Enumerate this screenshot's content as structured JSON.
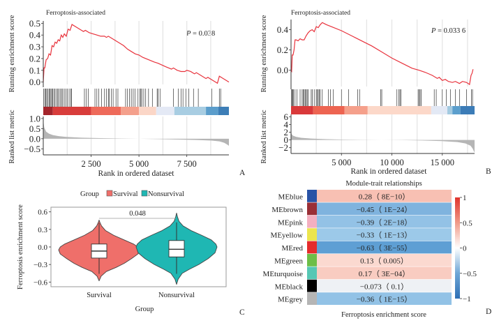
{
  "chart_data": [
    {
      "id": "A",
      "type": "line",
      "panel_label": "A",
      "title": "Ferroptosis-associated",
      "annotation": "P = 0.038",
      "annotation_italic": "P",
      "annotation_rest": " = 0.038",
      "ylabel_top": "Running enrichment score",
      "ylabel_bottom": "Ranked list metric",
      "xlabel": "Rank in ordered dataset",
      "xlim": [
        0,
        9700
      ],
      "es_ylim": [
        -0.02,
        0.52
      ],
      "es_yticks": [
        0.0,
        0.1,
        0.2,
        0.3,
        0.4,
        0.5
      ],
      "es_ytick_labels": [
        "0.0",
        "0.1",
        "0.2",
        "0.3",
        "0.4",
        "0.5"
      ],
      "metric_ylim": [
        -0.8,
        1.1
      ],
      "metric_yticks": [
        1.0,
        0.5,
        0.0,
        -0.5
      ],
      "metric_ytick_labels": [
        "1.0",
        "0.5",
        "0.0",
        "−0.5"
      ],
      "xticks": [
        2500,
        5000,
        7500
      ],
      "xtick_labels": [
        "2 500",
        "5 000",
        "7 500"
      ],
      "grid_x": [
        1250,
        2500,
        3750,
        5000,
        6250,
        7500,
        8750
      ],
      "running_es": {
        "x": [
          0,
          40,
          80,
          150,
          230,
          300,
          380,
          460,
          540,
          620,
          700,
          780,
          860,
          940,
          1020,
          1100,
          1200,
          1300,
          1400,
          1500,
          1800,
          2000,
          2100,
          2200,
          2400,
          2600,
          2800,
          3000,
          3200,
          3300,
          3400,
          3600,
          3800,
          4000,
          4200,
          4400,
          4600,
          4800,
          5000,
          5200,
          5500,
          5800,
          6000,
          6400,
          6700,
          6800,
          7000,
          7200,
          7400,
          7500,
          7700,
          7900,
          8000,
          8200,
          8500,
          8600,
          8800,
          9000,
          9100,
          9200,
          9300,
          9500,
          9700
        ],
        "y": [
          0.0,
          0.12,
          0.12,
          0.19,
          0.2,
          0.24,
          0.23,
          0.31,
          0.3,
          0.34,
          0.33,
          0.36,
          0.35,
          0.4,
          0.38,
          0.41,
          0.39,
          0.45,
          0.44,
          0.49,
          0.46,
          0.44,
          0.43,
          0.44,
          0.42,
          0.41,
          0.4,
          0.39,
          0.39,
          0.38,
          0.39,
          0.37,
          0.35,
          0.33,
          0.31,
          0.28,
          0.26,
          0.24,
          0.23,
          0.21,
          0.19,
          0.17,
          0.16,
          0.13,
          0.11,
          0.12,
          0.1,
          0.09,
          0.09,
          0.1,
          0.09,
          0.07,
          0.08,
          0.06,
          0.03,
          0.04,
          0.02,
          0.0,
          -0.01,
          0.05,
          0.04,
          0.02,
          0.0
        ]
      },
      "hits": [
        20,
        80,
        130,
        180,
        240,
        300,
        350,
        400,
        450,
        500,
        560,
        620,
        700,
        760,
        820,
        900,
        960,
        1020,
        1100,
        1180,
        1260,
        1350,
        1430,
        1480,
        2150,
        2250,
        2350,
        2700,
        2800,
        2900,
        3050,
        3200,
        3300,
        3400,
        3450,
        3550,
        3650,
        3800,
        3900,
        4300,
        4400,
        4500,
        4600,
        4700,
        4800,
        4950,
        5050,
        5100,
        5150,
        5250,
        5350,
        5500,
        5700,
        5950,
        6000,
        6100,
        6800,
        7050,
        7200,
        7300,
        7450,
        7600,
        7850,
        8100,
        8800,
        9200,
        9270
      ],
      "heat_segments": [
        {
          "from": 0,
          "to": 500,
          "color": "#a4252b"
        },
        {
          "from": 500,
          "to": 2500,
          "color": "#d83d3b"
        },
        {
          "from": 2500,
          "to": 4050,
          "color": "#ee6a5a"
        },
        {
          "from": 4050,
          "to": 5000,
          "color": "#f4a08c"
        },
        {
          "from": 5000,
          "to": 5900,
          "color": "#fbd6c7"
        },
        {
          "from": 5900,
          "to": 6850,
          "color": "#e4e9f5"
        },
        {
          "from": 6850,
          "to": 8500,
          "color": "#a8cde2"
        },
        {
          "from": 8500,
          "to": 9150,
          "color": "#5b9dcb"
        },
        {
          "from": 9150,
          "to": 9700,
          "color": "#3d7eb7"
        }
      ],
      "ranked_metric": {
        "x": [
          0,
          50,
          150,
          300,
          500,
          800,
          1200,
          2000,
          3000,
          4000,
          5000,
          6000,
          7000,
          8000,
          8800,
          9200,
          9450,
          9600,
          9700
        ],
        "y": [
          0.9,
          0.55,
          0.35,
          0.25,
          0.18,
          0.13,
          0.09,
          0.05,
          0.03,
          0.01,
          0.0,
          -0.02,
          -0.04,
          -0.06,
          -0.09,
          -0.13,
          -0.2,
          -0.28,
          -0.35
        ]
      },
      "line_color": "#e8323c",
      "metric_fill": "#b5b5b5"
    },
    {
      "id": "B",
      "type": "line",
      "panel_label": "B",
      "title": "Ferroptosis-associated",
      "annotation_italic": "P",
      "annotation_rest": " = 0.033 6",
      "ylabel_top": "Running enrichment score",
      "ylabel_bottom": "Ranked list metric",
      "xlabel": "Rank in ordered dataset",
      "xlim": [
        0,
        18200
      ],
      "es_ylim": [
        -0.16,
        0.5
      ],
      "es_yticks": [
        0.0,
        0.2,
        0.4
      ],
      "es_ytick_labels": [
        "0.0",
        "0.2",
        "0.4"
      ],
      "metric_ylim": [
        -3.5,
        6.6
      ],
      "metric_yticks": [
        6,
        4,
        2,
        0,
        -2
      ],
      "metric_ytick_labels": [
        "6",
        "4",
        "2",
        "0",
        "−2"
      ],
      "xticks": [
        5000,
        10000,
        15000
      ],
      "xtick_labels": [
        "5 000",
        "10 000",
        "15 000"
      ],
      "grid_x": [
        2500,
        5000,
        7500,
        10000,
        12500,
        15000,
        17500
      ],
      "running_es": {
        "x": [
          0,
          60,
          120,
          200,
          300,
          400,
          500,
          700,
          900,
          1100,
          1300,
          1500,
          1700,
          1900,
          2100,
          2300,
          2500,
          2700,
          2900,
          3100,
          3300,
          3500,
          4000,
          5000,
          6000,
          7000,
          8000,
          9000,
          10000,
          11000,
          12000,
          12700,
          13300,
          14000,
          14500,
          14700,
          15000,
          15300,
          15600,
          16000,
          16300,
          16700,
          17000,
          17400,
          17700,
          17850,
          17950,
          18050
        ],
        "y": [
          0.0,
          -0.01,
          0.15,
          0.15,
          0.2,
          0.3,
          0.3,
          0.29,
          0.31,
          0.3,
          0.3,
          0.34,
          0.37,
          0.39,
          0.4,
          0.38,
          0.43,
          0.42,
          0.45,
          0.47,
          0.46,
          0.45,
          0.43,
          0.39,
          0.34,
          0.29,
          0.24,
          0.18,
          0.12,
          0.07,
          0.02,
          0.0,
          -0.02,
          -0.05,
          -0.08,
          -0.07,
          -0.1,
          -0.09,
          -0.11,
          -0.12,
          -0.11,
          -0.13,
          -0.11,
          -0.12,
          -0.14,
          -0.05,
          -0.03,
          0.01
        ]
      },
      "hits": [
        50,
        100,
        170,
        240,
        400,
        600,
        900,
        1100,
        1200,
        1300,
        1400,
        1500,
        1600,
        1700,
        2000,
        2100,
        2300,
        2500,
        2600,
        2700,
        2800,
        2900,
        3100,
        3700,
        3900,
        4200,
        5000,
        5700,
        6600,
        6800,
        8900,
        9000,
        10500,
        10700,
        10800,
        10900,
        12600,
        12700,
        12800,
        12900,
        14200,
        14400,
        15000,
        15400,
        15800,
        16300,
        16700,
        17400,
        17900,
        18000
      ],
      "heat_segments": [
        {
          "from": 0,
          "to": 2200,
          "color": "#d9393a"
        },
        {
          "from": 2200,
          "to": 5300,
          "color": "#ed6451"
        },
        {
          "from": 5300,
          "to": 7600,
          "color": "#f5a08b"
        },
        {
          "from": 7600,
          "to": 13900,
          "color": "#fcd8c9"
        },
        {
          "from": 13900,
          "to": 15500,
          "color": "#e3e9f5"
        },
        {
          "from": 15500,
          "to": 16000,
          "color": "#a4cbe1"
        },
        {
          "from": 16000,
          "to": 16800,
          "color": "#5c9fcd"
        },
        {
          "from": 16800,
          "to": 18200,
          "color": "#3c7cb7"
        }
      ],
      "ranked_metric": {
        "x": [
          0,
          60,
          200,
          500,
          1000,
          2000,
          3500,
          5000,
          7000,
          9000,
          11000,
          13000,
          15000,
          16500,
          17300,
          17800,
          18000,
          18200
        ],
        "y": [
          2.1,
          1.5,
          1.1,
          0.8,
          0.55,
          0.35,
          0.2,
          0.1,
          0.04,
          0.0,
          -0.05,
          -0.15,
          -0.3,
          -0.55,
          -0.9,
          -1.5,
          -2.2,
          -3.3
        ]
      },
      "line_color": "#e8323c",
      "metric_fill": "#b5b5b5"
    },
    {
      "id": "C",
      "type": "violin",
      "panel_label": "C",
      "legend_title": "Group",
      "legend_placement": "top",
      "categories": [
        "Survival",
        "Nonsurvival"
      ],
      "colors": [
        "#ef6f6a",
        "#1fb7b3"
      ],
      "xlabel": "Group",
      "ylabel": "Ferroptosis enrichment score",
      "ylim": [
        -0.68,
        0.68
      ],
      "yticks": [
        0.6,
        0.3,
        0.0,
        -0.3,
        -0.6
      ],
      "ytick_labels": [
        "0.6",
        "0.3",
        "0.0",
        "−0.3",
        "−0.6"
      ],
      "p_value_label": "0.048",
      "series": [
        {
          "name": "Survival",
          "box": {
            "q1": -0.19,
            "median": -0.07,
            "q3": 0.05,
            "whisker_low": -0.46,
            "whisker_high": 0.41
          },
          "range": [
            -0.58,
            0.46
          ],
          "density_y": [
            -0.58,
            -0.5,
            -0.42,
            -0.35,
            -0.28,
            -0.2,
            -0.12,
            -0.05,
            0.0,
            0.05,
            0.12,
            0.2,
            0.28,
            0.36,
            0.42,
            0.46
          ],
          "density_w": [
            0.0,
            0.05,
            0.18,
            0.42,
            0.62,
            0.8,
            0.96,
            1.0,
            0.96,
            0.85,
            0.62,
            0.36,
            0.16,
            0.06,
            0.02,
            0.0
          ]
        },
        {
          "name": "Nonsurvival",
          "box": {
            "q1": -0.17,
            "median": -0.04,
            "q3": 0.11,
            "whisker_low": -0.46,
            "whisker_high": 0.42
          },
          "range": [
            -0.64,
            0.58
          ],
          "density_y": [
            -0.64,
            -0.55,
            -0.45,
            -0.38,
            -0.3,
            -0.2,
            -0.1,
            0.0,
            0.05,
            0.12,
            0.2,
            0.28,
            0.36,
            0.44,
            0.52,
            0.58
          ],
          "density_w": [
            0.0,
            0.04,
            0.14,
            0.32,
            0.55,
            0.78,
            0.95,
            1.0,
            0.97,
            0.86,
            0.62,
            0.36,
            0.16,
            0.06,
            0.02,
            0.0
          ]
        }
      ]
    },
    {
      "id": "D",
      "type": "heatmap",
      "panel_label": "D",
      "title": "Module-trait relationships",
      "xlabel": "Ferroptosis enrichment score",
      "rows": [
        "MEblue",
        "MEbrown",
        "MEpink",
        "MEyellow",
        "MEred",
        "MEgreen",
        "MEturquoise",
        "MEblack",
        "MEgrey"
      ],
      "module_colors": [
        "#2953a6",
        "#9a2f36",
        "#f4afc0",
        "#ece54d",
        "#e52b2b",
        "#6dbe48",
        "#56c7b4",
        "#000000",
        "#b5b5b5"
      ],
      "values": [
        0.28,
        -0.45,
        -0.39,
        -0.33,
        -0.63,
        0.13,
        0.17,
        -0.073,
        -0.36
      ],
      "p_values": [
        "8E−10",
        "1E−24",
        "2E−18",
        "1E−13",
        "3E−55",
        "0.005",
        "3E−04",
        "0.1",
        "1E−15"
      ],
      "cell_labels": [
        "0.28（ 8E−10）",
        "−0.45（ 1E−24）",
        "−0.39（ 2E−18）",
        "−0.33（ 1E−13）",
        "−0.63（ 3E−55）",
        "0.13（ 0.005）",
        "0.17（ 3E−04）",
        "−0.073（ 0.1）",
        "−0.36（ 1E−15）"
      ],
      "cell_colors": [
        "#f8c0b3",
        "#7fb3de",
        "#93c2e6",
        "#9cc9e9",
        "#5e9fd4",
        "#fbd9d0",
        "#f9ccc1",
        "#eef1f5",
        "#92c2e6"
      ],
      "colorbar": {
        "range": [
          -1,
          1
        ],
        "ticks": [
          1,
          0.5,
          0,
          -0.5,
          -1
        ],
        "tick_labels": [
          "1",
          "0.5",
          "0",
          "−0.5",
          "−1"
        ],
        "low_color": "#2d6fb5",
        "mid_color": "#ffffff",
        "high_color": "#e0342d"
      }
    }
  ]
}
